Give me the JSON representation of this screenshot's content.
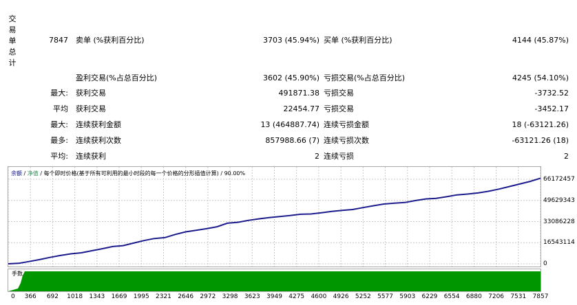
{
  "side_label": "交易单总计",
  "stats_rows": [
    {
      "a": "7847",
      "b": "卖单 (%获利百分比)",
      "c": "3703 (45.94%)",
      "d": "买单 (%获利百分比)",
      "e": "4144 (45.87%)"
    },
    {
      "a": "",
      "b": "盈利交易(%占总百分比)",
      "c": "3602 (45.90%)",
      "d": "亏损交易(%占总百分比)",
      "e": "4245 (54.10%)"
    },
    {
      "a": "最大:",
      "b": "获利交易",
      "c": "491871.38",
      "d": "亏损交易",
      "e": "-3732.52"
    },
    {
      "a": "平均",
      "b": "获利交易",
      "c": "22454.77",
      "d": "亏损交易",
      "e": "-3452.17"
    },
    {
      "a": "最大:",
      "b": "连续获利金额",
      "c": "13 (464887.74)",
      "d": "连续亏损金额",
      "e": "18 (-63121.26)"
    },
    {
      "a": "最多:",
      "b": "连续获利次数",
      "c": "857988.66 (7)",
      "d": "连续亏损次数",
      "e": "-63121.26 (18)"
    },
    {
      "a": "平均:",
      "b": "连续获利",
      "c": "2",
      "d": "连续亏损",
      "e": "2"
    }
  ],
  "chart_header": {
    "balance": "余额",
    "sep1": " / ",
    "equity": "净值",
    "sep2": " / 每个即时价格(基于所有可利用的最小时段的每一个价格的分形插值计算) / ",
    "quality": "90.00%"
  },
  "deposit_label": "手数",
  "chart_data": {
    "type": "line",
    "series": [
      {
        "values": [
          0,
          380000,
          1800000,
          3300000,
          5000000,
          6500000,
          7800000,
          8600000,
          10200000,
          11800000,
          13500000,
          14200000,
          16200000,
          18200000,
          19800000,
          20500000,
          23000000,
          25000000,
          26200000,
          27500000,
          29000000,
          31800000,
          32500000,
          34000000,
          35200000,
          36200000,
          37000000,
          37800000,
          38800000,
          39000000,
          40000000,
          41000000,
          41800000,
          42500000,
          44000000,
          45500000,
          46800000,
          47500000,
          48000000,
          49500000,
          50800000,
          51300000,
          52500000,
          54000000,
          54600000,
          55500000,
          56800000,
          58500000,
          60500000,
          62500000,
          64500000,
          67000000
        ]
      }
    ],
    "yticks": [
      "66172457",
      "49629343",
      "33086228",
      "16543114",
      "0"
    ],
    "ytick_values": [
      66172457,
      49629343,
      33086228,
      16543114,
      0
    ],
    "ylim": [
      0,
      70500000
    ],
    "xticks": [
      "0",
      "366",
      "692",
      "1018",
      "1343",
      "1669",
      "1995",
      "2321",
      "2646",
      "2972",
      "3298",
      "3623",
      "3949",
      "4275",
      "4600",
      "4926",
      "5252",
      "5577",
      "5903",
      "6229",
      "6554",
      "6880",
      "7206",
      "7531",
      "7857"
    ],
    "xlim": [
      0,
      7900
    ],
    "grid": true,
    "colors": {
      "line": "#1a1a8c",
      "grid": "#c8c8c8",
      "deposit": "#009600"
    }
  }
}
